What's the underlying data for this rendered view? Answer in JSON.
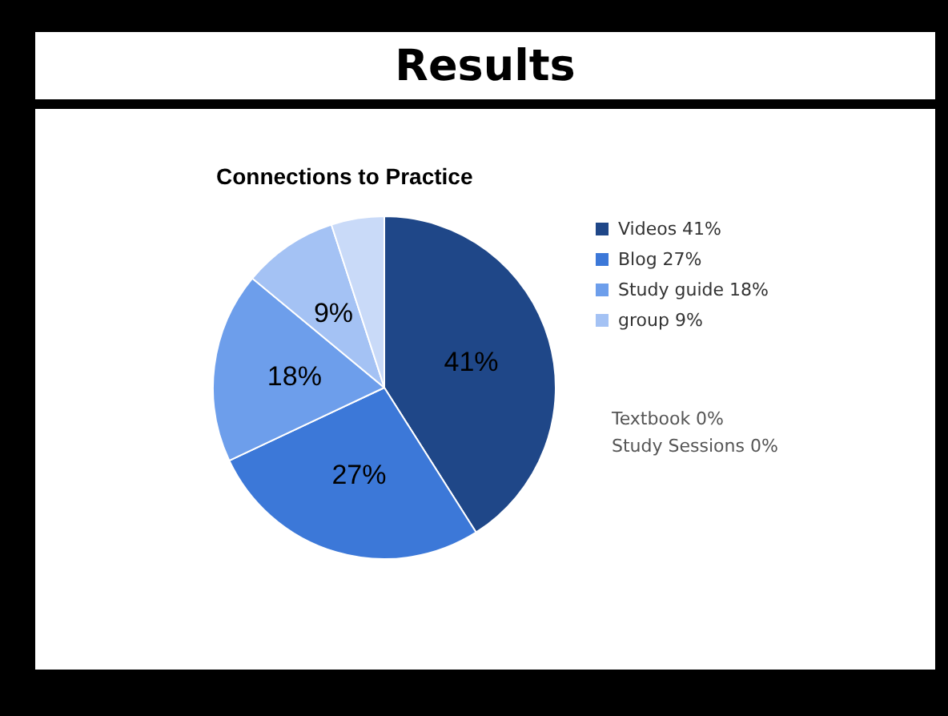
{
  "chart_data": {
    "type": "pie",
    "title": "Results",
    "subtitle": "Connections to Practice",
    "categories": [
      "Videos 41%",
      "Blog 27%",
      "Study guide 18%",
      "group 9%",
      null
    ],
    "values": [
      41,
      27,
      18,
      9,
      5
    ],
    "colors": [
      "#1f4788",
      "#3c78d8",
      "#6d9eeb",
      "#a4c2f4",
      "#c9daf8"
    ],
    "value_labels": [
      "41%",
      "27%",
      "18%",
      "9%",
      null
    ],
    "legend": "right",
    "annotations": [
      "Textbook 0%",
      "Study Sessions 0%"
    ]
  }
}
